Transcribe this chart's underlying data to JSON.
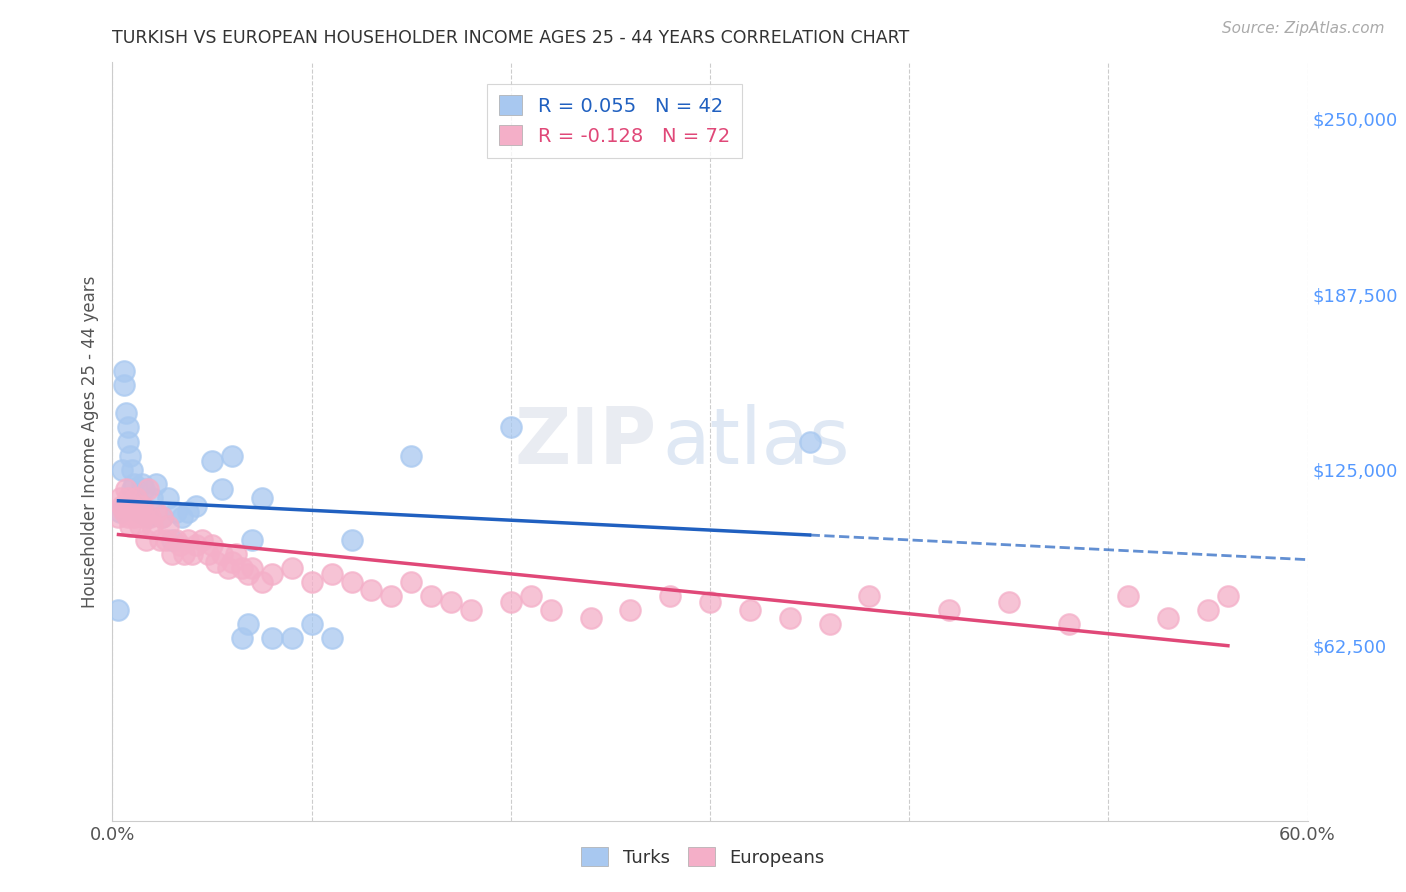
{
  "title": "TURKISH VS EUROPEAN HOUSEHOLDER INCOME AGES 25 - 44 YEARS CORRELATION CHART",
  "source": "Source: ZipAtlas.com",
  "ylabel": "Householder Income Ages 25 - 44 years",
  "background_color": "#ffffff",
  "grid_color": "#cccccc",
  "watermark_zip": "ZIP",
  "watermark_atlas": "atlas",
  "xlim": [
    0.0,
    0.6
  ],
  "ylim": [
    0,
    270000
  ],
  "yticks": [
    0,
    62500,
    125000,
    187500,
    250000
  ],
  "ytick_labels": [
    "",
    "$62,500",
    "$125,000",
    "$187,500",
    "$250,000"
  ],
  "xticks": [
    0.0,
    0.1,
    0.2,
    0.3,
    0.4,
    0.5,
    0.6
  ],
  "xtick_labels": [
    "0.0%",
    "",
    "",
    "",
    "",
    "",
    "60.0%"
  ],
  "legend_line1": "R = 0.055   N = 42",
  "legend_line2": "R = -0.128   N = 72",
  "turks_color": "#a8c8f0",
  "europeans_color": "#f4afc8",
  "turks_line_color": "#2060c0",
  "europeans_line_color": "#e04878",
  "turks_x": [
    0.003,
    0.004,
    0.005,
    0.006,
    0.006,
    0.007,
    0.008,
    0.008,
    0.009,
    0.01,
    0.01,
    0.011,
    0.012,
    0.013,
    0.014,
    0.015,
    0.016,
    0.018,
    0.02,
    0.022,
    0.025,
    0.028,
    0.03,
    0.032,
    0.035,
    0.038,
    0.042,
    0.05,
    0.055,
    0.06,
    0.065,
    0.068,
    0.07,
    0.075,
    0.08,
    0.09,
    0.1,
    0.11,
    0.12,
    0.15,
    0.2,
    0.35
  ],
  "turks_y": [
    75000,
    110000,
    125000,
    160000,
    155000,
    145000,
    140000,
    135000,
    130000,
    125000,
    118000,
    120000,
    115000,
    112000,
    110000,
    120000,
    118000,
    108000,
    115000,
    120000,
    108000,
    115000,
    100000,
    110000,
    108000,
    110000,
    112000,
    128000,
    118000,
    130000,
    65000,
    70000,
    100000,
    115000,
    65000,
    65000,
    70000,
    65000,
    100000,
    130000,
    140000,
    135000
  ],
  "europeans_x": [
    0.003,
    0.004,
    0.005,
    0.006,
    0.007,
    0.008,
    0.008,
    0.009,
    0.01,
    0.011,
    0.012,
    0.013,
    0.014,
    0.015,
    0.016,
    0.017,
    0.018,
    0.019,
    0.02,
    0.022,
    0.024,
    0.025,
    0.027,
    0.028,
    0.03,
    0.032,
    0.034,
    0.036,
    0.038,
    0.04,
    0.042,
    0.045,
    0.048,
    0.05,
    0.052,
    0.055,
    0.058,
    0.06,
    0.062,
    0.065,
    0.068,
    0.07,
    0.075,
    0.08,
    0.09,
    0.1,
    0.11,
    0.12,
    0.13,
    0.14,
    0.15,
    0.16,
    0.17,
    0.18,
    0.2,
    0.21,
    0.22,
    0.24,
    0.26,
    0.28,
    0.3,
    0.32,
    0.34,
    0.36,
    0.38,
    0.42,
    0.45,
    0.48,
    0.51,
    0.53,
    0.55,
    0.56
  ],
  "europeans_y": [
    108000,
    115000,
    112000,
    110000,
    118000,
    108000,
    115000,
    105000,
    112000,
    108000,
    115000,
    110000,
    105000,
    112000,
    108000,
    100000,
    118000,
    108000,
    105000,
    110000,
    100000,
    108000,
    100000,
    105000,
    95000,
    100000,
    98000,
    95000,
    100000,
    95000,
    98000,
    100000,
    95000,
    98000,
    92000,
    95000,
    90000,
    92000,
    95000,
    90000,
    88000,
    90000,
    85000,
    88000,
    90000,
    85000,
    88000,
    85000,
    82000,
    80000,
    85000,
    80000,
    78000,
    75000,
    78000,
    80000,
    75000,
    72000,
    75000,
    80000,
    78000,
    75000,
    72000,
    70000,
    80000,
    75000,
    78000,
    70000,
    80000,
    72000,
    75000,
    80000
  ]
}
